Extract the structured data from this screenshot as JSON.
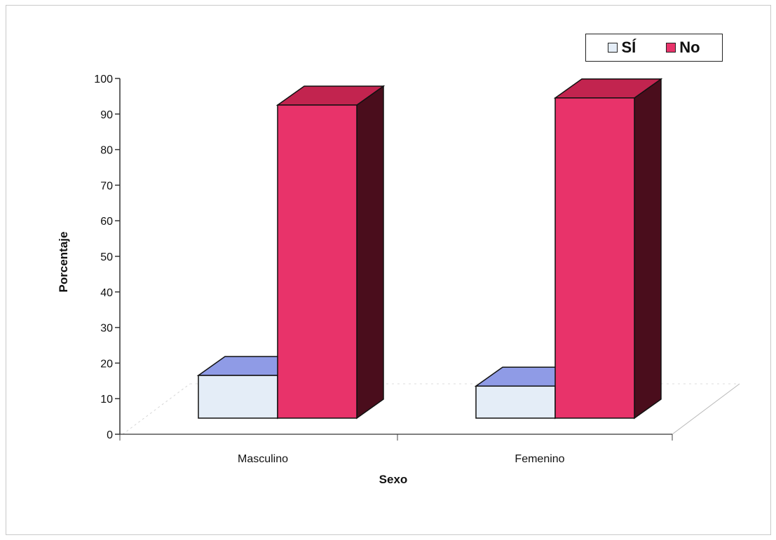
{
  "chart_data": {
    "type": "bar",
    "style": "3d-clustered-column",
    "categories": [
      "Masculino",
      "Femenino"
    ],
    "series": [
      {
        "name": "SÍ",
        "values": [
          12,
          9
        ],
        "color": "#e4edf7",
        "top_color": "#8f9be6"
      },
      {
        "name": "No",
        "values": [
          88,
          90
        ],
        "color": "#e8336a",
        "top_color": "#c2244f",
        "side_color": "#4a0d1c"
      }
    ],
    "xlabel": "Sexo",
    "ylabel": "Porcentaje",
    "ylim": [
      0,
      100
    ],
    "yticks": [
      0,
      10,
      20,
      30,
      40,
      50,
      60,
      70,
      80,
      90,
      100
    ],
    "grid": false,
    "legend": {
      "position": "top-right"
    }
  }
}
